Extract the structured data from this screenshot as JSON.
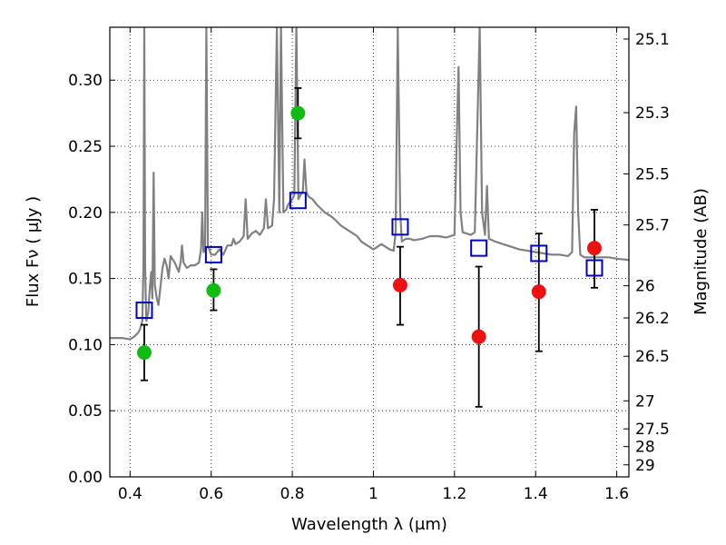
{
  "chart_data": {
    "type": "scatter",
    "title": "",
    "xlabel": "Wavelength  λ (μm)",
    "ylabel": "Flux  Fν  ( μJy )",
    "ylabel_right": "Magnitude (AB)",
    "xlim": [
      0.35,
      1.63
    ],
    "ylim": [
      0.0,
      0.34
    ],
    "grid": true,
    "x_ticks": [
      0.4,
      0.6,
      0.8,
      1.0,
      1.2,
      1.4,
      1.6
    ],
    "x_tick_labels": [
      "0.4",
      "0.6",
      "0.8",
      "1",
      "1.2",
      "1.4",
      "1.6"
    ],
    "y_ticks": [
      0.0,
      0.05,
      0.1,
      0.15,
      0.2,
      0.25,
      0.3
    ],
    "y_tick_labels": [
      "0.00",
      "0.05",
      "0.10",
      "0.15",
      "0.20",
      "0.25",
      "0.30"
    ],
    "right_ticks": [
      {
        "label": "25.1",
        "flux": 0.3311
      },
      {
        "label": "25.3",
        "flux": 0.2754
      },
      {
        "label": "25.5",
        "flux": 0.2291
      },
      {
        "label": "25.7",
        "flux": 0.1905
      },
      {
        "label": "26",
        "flux": 0.1445
      },
      {
        "label": "26.2",
        "flux": 0.1202
      },
      {
        "label": "26.5",
        "flux": 0.0912
      },
      {
        "label": "27",
        "flux": 0.0575
      },
      {
        "label": "27.5",
        "flux": 0.0363
      },
      {
        "label": "28",
        "flux": 0.0229
      },
      {
        "label": "29",
        "flux": 0.0091
      }
    ],
    "series": [
      {
        "marker": "circle",
        "color": "#11bb11",
        "points": [
          {
            "x": 0.435,
            "y": 0.094,
            "lo": 0.073,
            "hi": 0.115
          },
          {
            "x": 0.606,
            "y": 0.141,
            "lo": 0.126,
            "hi": 0.157
          },
          {
            "x": 0.814,
            "y": 0.275,
            "lo": 0.256,
            "hi": 0.294
          }
        ]
      },
      {
        "marker": "circle",
        "color": "#ee1111",
        "points": [
          {
            "x": 1.066,
            "y": 0.145,
            "lo": 0.115,
            "hi": 0.174
          },
          {
            "x": 1.26,
            "y": 0.106,
            "lo": 0.053,
            "hi": 0.159
          },
          {
            "x": 1.408,
            "y": 0.14,
            "lo": 0.095,
            "hi": 0.184
          },
          {
            "x": 1.545,
            "y": 0.173,
            "lo": 0.143,
            "hi": 0.202
          }
        ]
      },
      {
        "marker": "open-square",
        "color": "#0000cc",
        "points": [
          {
            "x": 0.435,
            "y": 0.126
          },
          {
            "x": 0.606,
            "y": 0.168
          },
          {
            "x": 0.814,
            "y": 0.209
          },
          {
            "x": 1.066,
            "y": 0.189
          },
          {
            "x": 1.26,
            "y": 0.173
          },
          {
            "x": 1.408,
            "y": 0.169
          },
          {
            "x": 1.545,
            "y": 0.158
          }
        ]
      }
    ],
    "spectrum": {
      "color": "#808080",
      "points": [
        [
          0.35,
          0.105
        ],
        [
          0.38,
          0.105
        ],
        [
          0.4,
          0.104
        ],
        [
          0.41,
          0.106
        ],
        [
          0.42,
          0.109
        ],
        [
          0.425,
          0.112
        ],
        [
          0.43,
          0.118
        ],
        [
          0.433,
          0.16
        ],
        [
          0.435,
          0.34
        ],
        [
          0.437,
          0.16
        ],
        [
          0.44,
          0.118
        ],
        [
          0.445,
          0.125
        ],
        [
          0.448,
          0.14
        ],
        [
          0.452,
          0.155
        ],
        [
          0.455,
          0.135
        ],
        [
          0.458,
          0.23
        ],
        [
          0.461,
          0.145
        ],
        [
          0.466,
          0.135
        ],
        [
          0.47,
          0.13
        ],
        [
          0.48,
          0.158
        ],
        [
          0.485,
          0.165
        ],
        [
          0.49,
          0.16
        ],
        [
          0.495,
          0.15
        ],
        [
          0.5,
          0.167
        ],
        [
          0.51,
          0.162
        ],
        [
          0.52,
          0.155
        ],
        [
          0.525,
          0.163
        ],
        [
          0.528,
          0.175
        ],
        [
          0.532,
          0.162
        ],
        [
          0.54,
          0.158
        ],
        [
          0.55,
          0.16
        ],
        [
          0.56,
          0.16
        ],
        [
          0.57,
          0.162
        ],
        [
          0.575,
          0.172
        ],
        [
          0.578,
          0.2
        ],
        [
          0.581,
          0.17
        ],
        [
          0.585,
          0.172
        ],
        [
          0.588,
          0.34
        ],
        [
          0.592,
          0.175
        ],
        [
          0.6,
          0.168
        ],
        [
          0.61,
          0.168
        ],
        [
          0.62,
          0.172
        ],
        [
          0.63,
          0.168
        ],
        [
          0.64,
          0.175
        ],
        [
          0.65,
          0.175
        ],
        [
          0.655,
          0.18
        ],
        [
          0.66,
          0.176
        ],
        [
          0.67,
          0.178
        ],
        [
          0.68,
          0.182
        ],
        [
          0.685,
          0.21
        ],
        [
          0.69,
          0.18
        ],
        [
          0.7,
          0.184
        ],
        [
          0.71,
          0.186
        ],
        [
          0.72,
          0.183
        ],
        [
          0.73,
          0.188
        ],
        [
          0.735,
          0.21
        ],
        [
          0.74,
          0.188
        ],
        [
          0.75,
          0.19
        ],
        [
          0.755,
          0.21
        ],
        [
          0.762,
          0.34
        ],
        [
          0.768,
          0.2
        ],
        [
          0.772,
          0.34
        ],
        [
          0.778,
          0.2
        ],
        [
          0.785,
          0.202
        ],
        [
          0.79,
          0.206
        ],
        [
          0.8,
          0.21
        ],
        [
          0.805,
          0.213
        ],
        [
          0.81,
          0.34
        ],
        [
          0.815,
          0.21
        ],
        [
          0.82,
          0.213
        ],
        [
          0.826,
          0.216
        ],
        [
          0.83,
          0.24
        ],
        [
          0.835,
          0.215
        ],
        [
          0.84,
          0.212
        ],
        [
          0.85,
          0.21
        ],
        [
          0.86,
          0.206
        ],
        [
          0.87,
          0.203
        ],
        [
          0.88,
          0.2
        ],
        [
          0.89,
          0.198
        ],
        [
          0.9,
          0.196
        ],
        [
          0.91,
          0.193
        ],
        [
          0.92,
          0.19
        ],
        [
          0.93,
          0.188
        ],
        [
          0.94,
          0.186
        ],
        [
          0.95,
          0.184
        ],
        [
          0.96,
          0.182
        ],
        [
          0.97,
          0.178
        ],
        [
          0.98,
          0.176
        ],
        [
          0.99,
          0.174
        ],
        [
          1.0,
          0.172
        ],
        [
          1.01,
          0.174
        ],
        [
          1.02,
          0.176
        ],
        [
          1.03,
          0.174
        ],
        [
          1.04,
          0.172
        ],
        [
          1.05,
          0.171
        ],
        [
          1.055,
          0.185
        ],
        [
          1.06,
          0.34
        ],
        [
          1.066,
          0.2
        ],
        [
          1.07,
          0.178
        ],
        [
          1.08,
          0.18
        ],
        [
          1.09,
          0.18
        ],
        [
          1.1,
          0.179
        ],
        [
          1.12,
          0.18
        ],
        [
          1.14,
          0.182
        ],
        [
          1.16,
          0.182
        ],
        [
          1.18,
          0.181
        ],
        [
          1.2,
          0.183
        ],
        [
          1.205,
          0.25
        ],
        [
          1.21,
          0.31
        ],
        [
          1.215,
          0.2
        ],
        [
          1.22,
          0.185
        ],
        [
          1.23,
          0.184
        ],
        [
          1.24,
          0.183
        ],
        [
          1.25,
          0.185
        ],
        [
          1.262,
          0.34
        ],
        [
          1.268,
          0.2
        ],
        [
          1.275,
          0.183
        ],
        [
          1.28,
          0.22
        ],
        [
          1.285,
          0.18
        ],
        [
          1.3,
          0.178
        ],
        [
          1.32,
          0.176
        ],
        [
          1.34,
          0.174
        ],
        [
          1.36,
          0.172
        ],
        [
          1.38,
          0.171
        ],
        [
          1.4,
          0.17
        ],
        [
          1.42,
          0.169
        ],
        [
          1.44,
          0.168
        ],
        [
          1.46,
          0.168
        ],
        [
          1.48,
          0.167
        ],
        [
          1.49,
          0.17
        ],
        [
          1.495,
          0.26
        ],
        [
          1.5,
          0.28
        ],
        [
          1.505,
          0.2
        ],
        [
          1.51,
          0.168
        ],
        [
          1.52,
          0.166
        ],
        [
          1.54,
          0.166
        ],
        [
          1.56,
          0.166
        ],
        [
          1.58,
          0.166
        ],
        [
          1.6,
          0.165
        ],
        [
          1.63,
          0.164
        ]
      ]
    }
  }
}
